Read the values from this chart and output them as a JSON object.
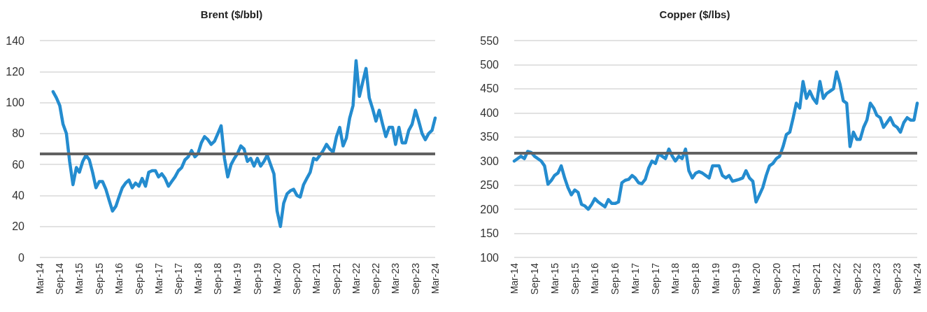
{
  "chart_data": [
    {
      "type": "line",
      "title": "Brent ($/bbl)",
      "grid": "y",
      "marker": "none",
      "line_style": "solid",
      "xlim": [
        "2014-03",
        "2024-03"
      ],
      "xticks": [
        {
          "value": "2014-03",
          "label": "Mar-14"
        },
        {
          "value": "2014-09",
          "label": "Sep-14"
        },
        {
          "value": "2015-03",
          "label": "Mar-15"
        },
        {
          "value": "2015-09",
          "label": "Sep-15"
        },
        {
          "value": "2016-03",
          "label": "Mar-16"
        },
        {
          "value": "2016-09",
          "label": "Sep-16"
        },
        {
          "value": "2017-03",
          "label": "Mar-17"
        },
        {
          "value": "2017-09",
          "label": "Sep-17"
        },
        {
          "value": "2018-03",
          "label": "Mar-18"
        },
        {
          "value": "2018-09",
          "label": "Sep-18"
        },
        {
          "value": "2019-03",
          "label": "Mar-19"
        },
        {
          "value": "2019-09",
          "label": "Sep-19"
        },
        {
          "value": "2020-03",
          "label": "Mar-20"
        },
        {
          "value": "2020-09",
          "label": "Sep-20"
        },
        {
          "value": "2021-03",
          "label": "Mar-21"
        },
        {
          "value": "2021-09",
          "label": "Sep-21"
        },
        {
          "value": "2022-03",
          "label": "Mar-22"
        },
        {
          "value": "2022-09",
          "label": "Sep-22"
        },
        {
          "value": "2023-03",
          "label": "Mar-23"
        },
        {
          "value": "2023-09",
          "label": "Sep-23"
        },
        {
          "value": "2024-03",
          "label": "Mar-24"
        }
      ],
      "ylim": [
        0,
        140
      ],
      "yticks": [
        0,
        20,
        40,
        60,
        80,
        100,
        120,
        140
      ],
      "x": [
        "2014-07",
        "2014-08",
        "2014-09",
        "2014-10",
        "2014-11",
        "2014-12",
        "2015-01",
        "2015-02",
        "2015-03",
        "2015-04",
        "2015-05",
        "2015-06",
        "2015-07",
        "2015-08",
        "2015-09",
        "2015-10",
        "2015-11",
        "2015-12",
        "2016-01",
        "2016-02",
        "2016-03",
        "2016-04",
        "2016-05",
        "2016-06",
        "2016-07",
        "2016-08",
        "2016-09",
        "2016-10",
        "2016-11",
        "2016-12",
        "2017-01",
        "2017-02",
        "2017-03",
        "2017-04",
        "2017-05",
        "2017-06",
        "2017-07",
        "2017-08",
        "2017-09",
        "2017-10",
        "2017-11",
        "2017-12",
        "2018-01",
        "2018-02",
        "2018-03",
        "2018-04",
        "2018-05",
        "2018-06",
        "2018-07",
        "2018-08",
        "2018-09",
        "2018-10",
        "2018-11",
        "2018-12",
        "2019-01",
        "2019-02",
        "2019-03",
        "2019-04",
        "2019-05",
        "2019-06",
        "2019-07",
        "2019-08",
        "2019-09",
        "2019-10",
        "2019-11",
        "2019-12",
        "2020-01",
        "2020-02",
        "2020-03",
        "2020-04",
        "2020-05",
        "2020-06",
        "2020-07",
        "2020-08",
        "2020-09",
        "2020-10",
        "2020-11",
        "2020-12",
        "2021-01",
        "2021-02",
        "2021-03",
        "2021-04",
        "2021-05",
        "2021-06",
        "2021-07",
        "2021-08",
        "2021-09",
        "2021-10",
        "2021-11",
        "2021-12",
        "2022-01",
        "2022-02",
        "2022-03",
        "2022-04",
        "2022-05",
        "2022-06",
        "2022-07",
        "2022-08",
        "2022-09",
        "2022-10",
        "2022-11",
        "2022-12",
        "2023-01",
        "2023-02",
        "2023-03",
        "2023-04",
        "2023-05",
        "2023-06",
        "2023-07",
        "2023-08",
        "2023-09",
        "2023-10",
        "2023-11",
        "2023-12",
        "2024-01",
        "2024-02",
        "2024-03"
      ],
      "series": [
        {
          "color": "#248ccf",
          "values": [
            107,
            103,
            98,
            86,
            80,
            62,
            47,
            58,
            55,
            62,
            66,
            63,
            55,
            45,
            49,
            49,
            44,
            37,
            30,
            33,
            39,
            45,
            48,
            50,
            45,
            48,
            46,
            51,
            46,
            55,
            56,
            56,
            52,
            54,
            51,
            46,
            49,
            52,
            56,
            58,
            63,
            65,
            69,
            65,
            67,
            74,
            78,
            76,
            73,
            75,
            80,
            85,
            64,
            52,
            60,
            64,
            67,
            72,
            70,
            62,
            64,
            59,
            64,
            59,
            62,
            66,
            60,
            54,
            30,
            20,
            35,
            41,
            43,
            44,
            40,
            39,
            47,
            51,
            55,
            64,
            63,
            66,
            69,
            73,
            70,
            68,
            78,
            84,
            72,
            77,
            90,
            98,
            127,
            104,
            113,
            122,
            103,
            96,
            88,
            95,
            86,
            78,
            84,
            84,
            73,
            84,
            74,
            74,
            82,
            86,
            95,
            88,
            80,
            76,
            80,
            82,
            90
          ]
        }
      ],
      "ref_lines": [
        {
          "axis": "y",
          "value": 67,
          "color": "#616161"
        }
      ]
    },
    {
      "type": "line",
      "title": "Copper ($/lbs)",
      "grid": "y",
      "marker": "none",
      "line_style": "solid",
      "xlim": [
        "2014-03",
        "2024-03"
      ],
      "xticks": [
        {
          "value": "2014-03",
          "label": "Mar-14"
        },
        {
          "value": "2014-09",
          "label": "Sep-14"
        },
        {
          "value": "2015-03",
          "label": "Mar-15"
        },
        {
          "value": "2015-09",
          "label": "Sep-15"
        },
        {
          "value": "2016-03",
          "label": "Mar-16"
        },
        {
          "value": "2016-09",
          "label": "Sep-16"
        },
        {
          "value": "2017-03",
          "label": "Mar-17"
        },
        {
          "value": "2017-09",
          "label": "Sep-17"
        },
        {
          "value": "2018-03",
          "label": "Mar-18"
        },
        {
          "value": "2018-09",
          "label": "Sep-18"
        },
        {
          "value": "2019-03",
          "label": "Mar-19"
        },
        {
          "value": "2019-09",
          "label": "Sep-19"
        },
        {
          "value": "2020-03",
          "label": "Mar-20"
        },
        {
          "value": "2020-09",
          "label": "Sep-20"
        },
        {
          "value": "2021-03",
          "label": "Mar-21"
        },
        {
          "value": "2021-09",
          "label": "Sep-21"
        },
        {
          "value": "2022-03",
          "label": "Mar-22"
        },
        {
          "value": "2022-09",
          "label": "Sep-22"
        },
        {
          "value": "2023-03",
          "label": "Mar-23"
        },
        {
          "value": "2023-09",
          "label": "Sep-23"
        },
        {
          "value": "2024-03",
          "label": "Mar-24"
        }
      ],
      "ylim": [
        100,
        550
      ],
      "yticks": [
        100,
        150,
        200,
        250,
        300,
        350,
        400,
        450,
        500,
        550
      ],
      "x": [
        "2014-03",
        "2014-04",
        "2014-05",
        "2014-06",
        "2014-07",
        "2014-08",
        "2014-09",
        "2014-10",
        "2014-11",
        "2014-12",
        "2015-01",
        "2015-02",
        "2015-03",
        "2015-04",
        "2015-05",
        "2015-06",
        "2015-07",
        "2015-08",
        "2015-09",
        "2015-10",
        "2015-11",
        "2015-12",
        "2016-01",
        "2016-02",
        "2016-03",
        "2016-04",
        "2016-05",
        "2016-06",
        "2016-07",
        "2016-08",
        "2016-09",
        "2016-10",
        "2016-11",
        "2016-12",
        "2017-01",
        "2017-02",
        "2017-03",
        "2017-04",
        "2017-05",
        "2017-06",
        "2017-07",
        "2017-08",
        "2017-09",
        "2017-10",
        "2017-11",
        "2017-12",
        "2018-01",
        "2018-02",
        "2018-03",
        "2018-04",
        "2018-05",
        "2018-06",
        "2018-07",
        "2018-08",
        "2018-09",
        "2018-10",
        "2018-11",
        "2018-12",
        "2019-01",
        "2019-02",
        "2019-03",
        "2019-04",
        "2019-05",
        "2019-06",
        "2019-07",
        "2019-08",
        "2019-09",
        "2019-10",
        "2019-11",
        "2019-12",
        "2020-01",
        "2020-02",
        "2020-03",
        "2020-04",
        "2020-05",
        "2020-06",
        "2020-07",
        "2020-08",
        "2020-09",
        "2020-10",
        "2020-11",
        "2020-12",
        "2021-01",
        "2021-02",
        "2021-03",
        "2021-04",
        "2021-05",
        "2021-06",
        "2021-07",
        "2021-08",
        "2021-09",
        "2021-10",
        "2021-11",
        "2021-12",
        "2022-01",
        "2022-02",
        "2022-03",
        "2022-04",
        "2022-05",
        "2022-06",
        "2022-07",
        "2022-08",
        "2022-09",
        "2022-10",
        "2022-11",
        "2022-12",
        "2023-01",
        "2023-02",
        "2023-03",
        "2023-04",
        "2023-05",
        "2023-06",
        "2023-07",
        "2023-08",
        "2023-09",
        "2023-10",
        "2023-11",
        "2023-12",
        "2024-01",
        "2024-02",
        "2024-03"
      ],
      "series": [
        {
          "color": "#248ccf",
          "values": [
            300,
            305,
            310,
            305,
            320,
            318,
            310,
            305,
            300,
            290,
            252,
            260,
            270,
            275,
            290,
            265,
            245,
            230,
            240,
            235,
            210,
            207,
            200,
            210,
            222,
            215,
            210,
            205,
            220,
            212,
            212,
            215,
            255,
            260,
            262,
            270,
            265,
            255,
            253,
            262,
            285,
            300,
            295,
            315,
            310,
            305,
            325,
            310,
            300,
            310,
            305,
            325,
            280,
            265,
            275,
            278,
            275,
            270,
            265,
            290,
            290,
            290,
            270,
            265,
            270,
            258,
            260,
            262,
            265,
            280,
            265,
            258,
            215,
            230,
            245,
            270,
            290,
            295,
            305,
            310,
            330,
            355,
            360,
            390,
            420,
            410,
            465,
            430,
            445,
            430,
            420,
            465,
            430,
            440,
            445,
            450,
            485,
            460,
            425,
            420,
            330,
            360,
            345,
            345,
            370,
            385,
            420,
            410,
            395,
            390,
            370,
            380,
            390,
            375,
            370,
            360,
            380,
            390,
            385,
            385,
            420
          ]
        }
      ],
      "ref_lines": [
        {
          "axis": "y",
          "value": 316,
          "color": "#616161"
        }
      ]
    }
  ]
}
